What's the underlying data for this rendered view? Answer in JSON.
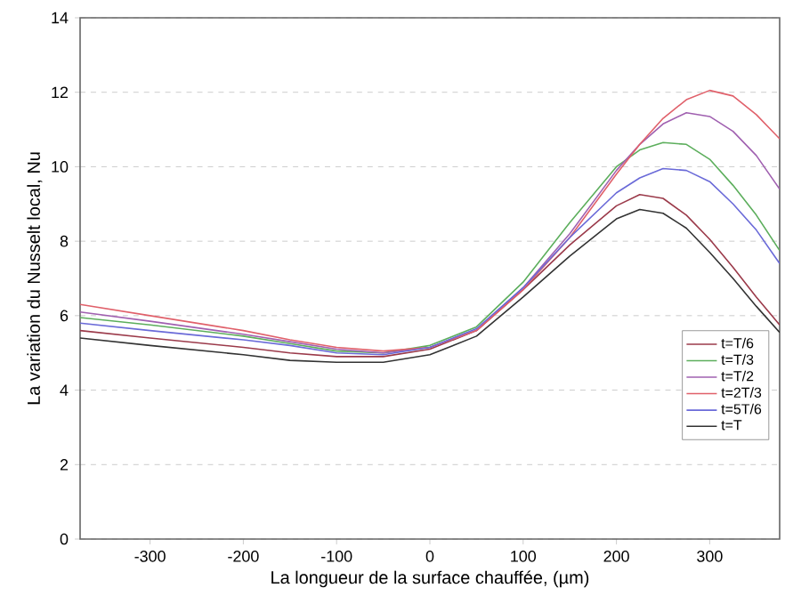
{
  "chart_data": {
    "type": "line",
    "xlabel": "La longueur de la surface chauffée, (µm)",
    "ylabel": "La variation du Nusselt local, Nu",
    "x": [
      -375,
      -300,
      -200,
      -150,
      -100,
      -50,
      0,
      50,
      100,
      150,
      200,
      225,
      250,
      275,
      300,
      325,
      350,
      375
    ],
    "series": [
      {
        "name": "t=T/6",
        "color": "#9b3a4a",
        "values": [
          5.6,
          5.4,
          5.15,
          5.0,
          4.9,
          4.9,
          5.1,
          5.6,
          6.7,
          7.9,
          8.95,
          9.25,
          9.15,
          8.7,
          8.05,
          7.3,
          6.5,
          5.75
        ]
      },
      {
        "name": "t=T/3",
        "color": "#5cae5c",
        "values": [
          5.95,
          5.75,
          5.45,
          5.25,
          5.05,
          5.0,
          5.2,
          5.7,
          6.9,
          8.5,
          10.0,
          10.45,
          10.65,
          10.6,
          10.2,
          9.5,
          8.7,
          7.75
        ]
      },
      {
        "name": "t=T/2",
        "color": "#a060b0",
        "values": [
          6.1,
          5.85,
          5.5,
          5.3,
          5.1,
          5.0,
          5.15,
          5.6,
          6.75,
          8.2,
          9.9,
          10.6,
          11.15,
          11.45,
          11.35,
          10.95,
          10.3,
          9.4
        ]
      },
      {
        "name": "t=2T/3",
        "color": "#e0606a",
        "values": [
          6.3,
          6.0,
          5.6,
          5.35,
          5.15,
          5.05,
          5.15,
          5.6,
          6.7,
          8.1,
          9.8,
          10.6,
          11.3,
          11.8,
          12.05,
          11.9,
          11.4,
          10.75
        ]
      },
      {
        "name": "t=5T/6",
        "color": "#6a6ad8",
        "values": [
          5.8,
          5.6,
          5.35,
          5.2,
          5.0,
          4.95,
          5.15,
          5.65,
          6.75,
          8.1,
          9.3,
          9.7,
          9.95,
          9.9,
          9.6,
          9.0,
          8.3,
          7.4
        ]
      },
      {
        "name": "t=T",
        "color": "#333333",
        "values": [
          5.4,
          5.2,
          4.95,
          4.8,
          4.75,
          4.75,
          4.95,
          5.45,
          6.5,
          7.6,
          8.6,
          8.85,
          8.75,
          8.35,
          7.7,
          7.0,
          6.25,
          5.55
        ]
      }
    ],
    "xlim": [
      -375,
      375
    ],
    "ylim": [
      0,
      14
    ],
    "xticks": [
      -300,
      -200,
      -100,
      0,
      100,
      200,
      300
    ],
    "yticks": [
      0,
      2,
      4,
      6,
      8,
      10,
      12,
      14
    ],
    "grid": "y",
    "legend": "bottom right",
    "line_style": "solid",
    "marker": "none"
  }
}
